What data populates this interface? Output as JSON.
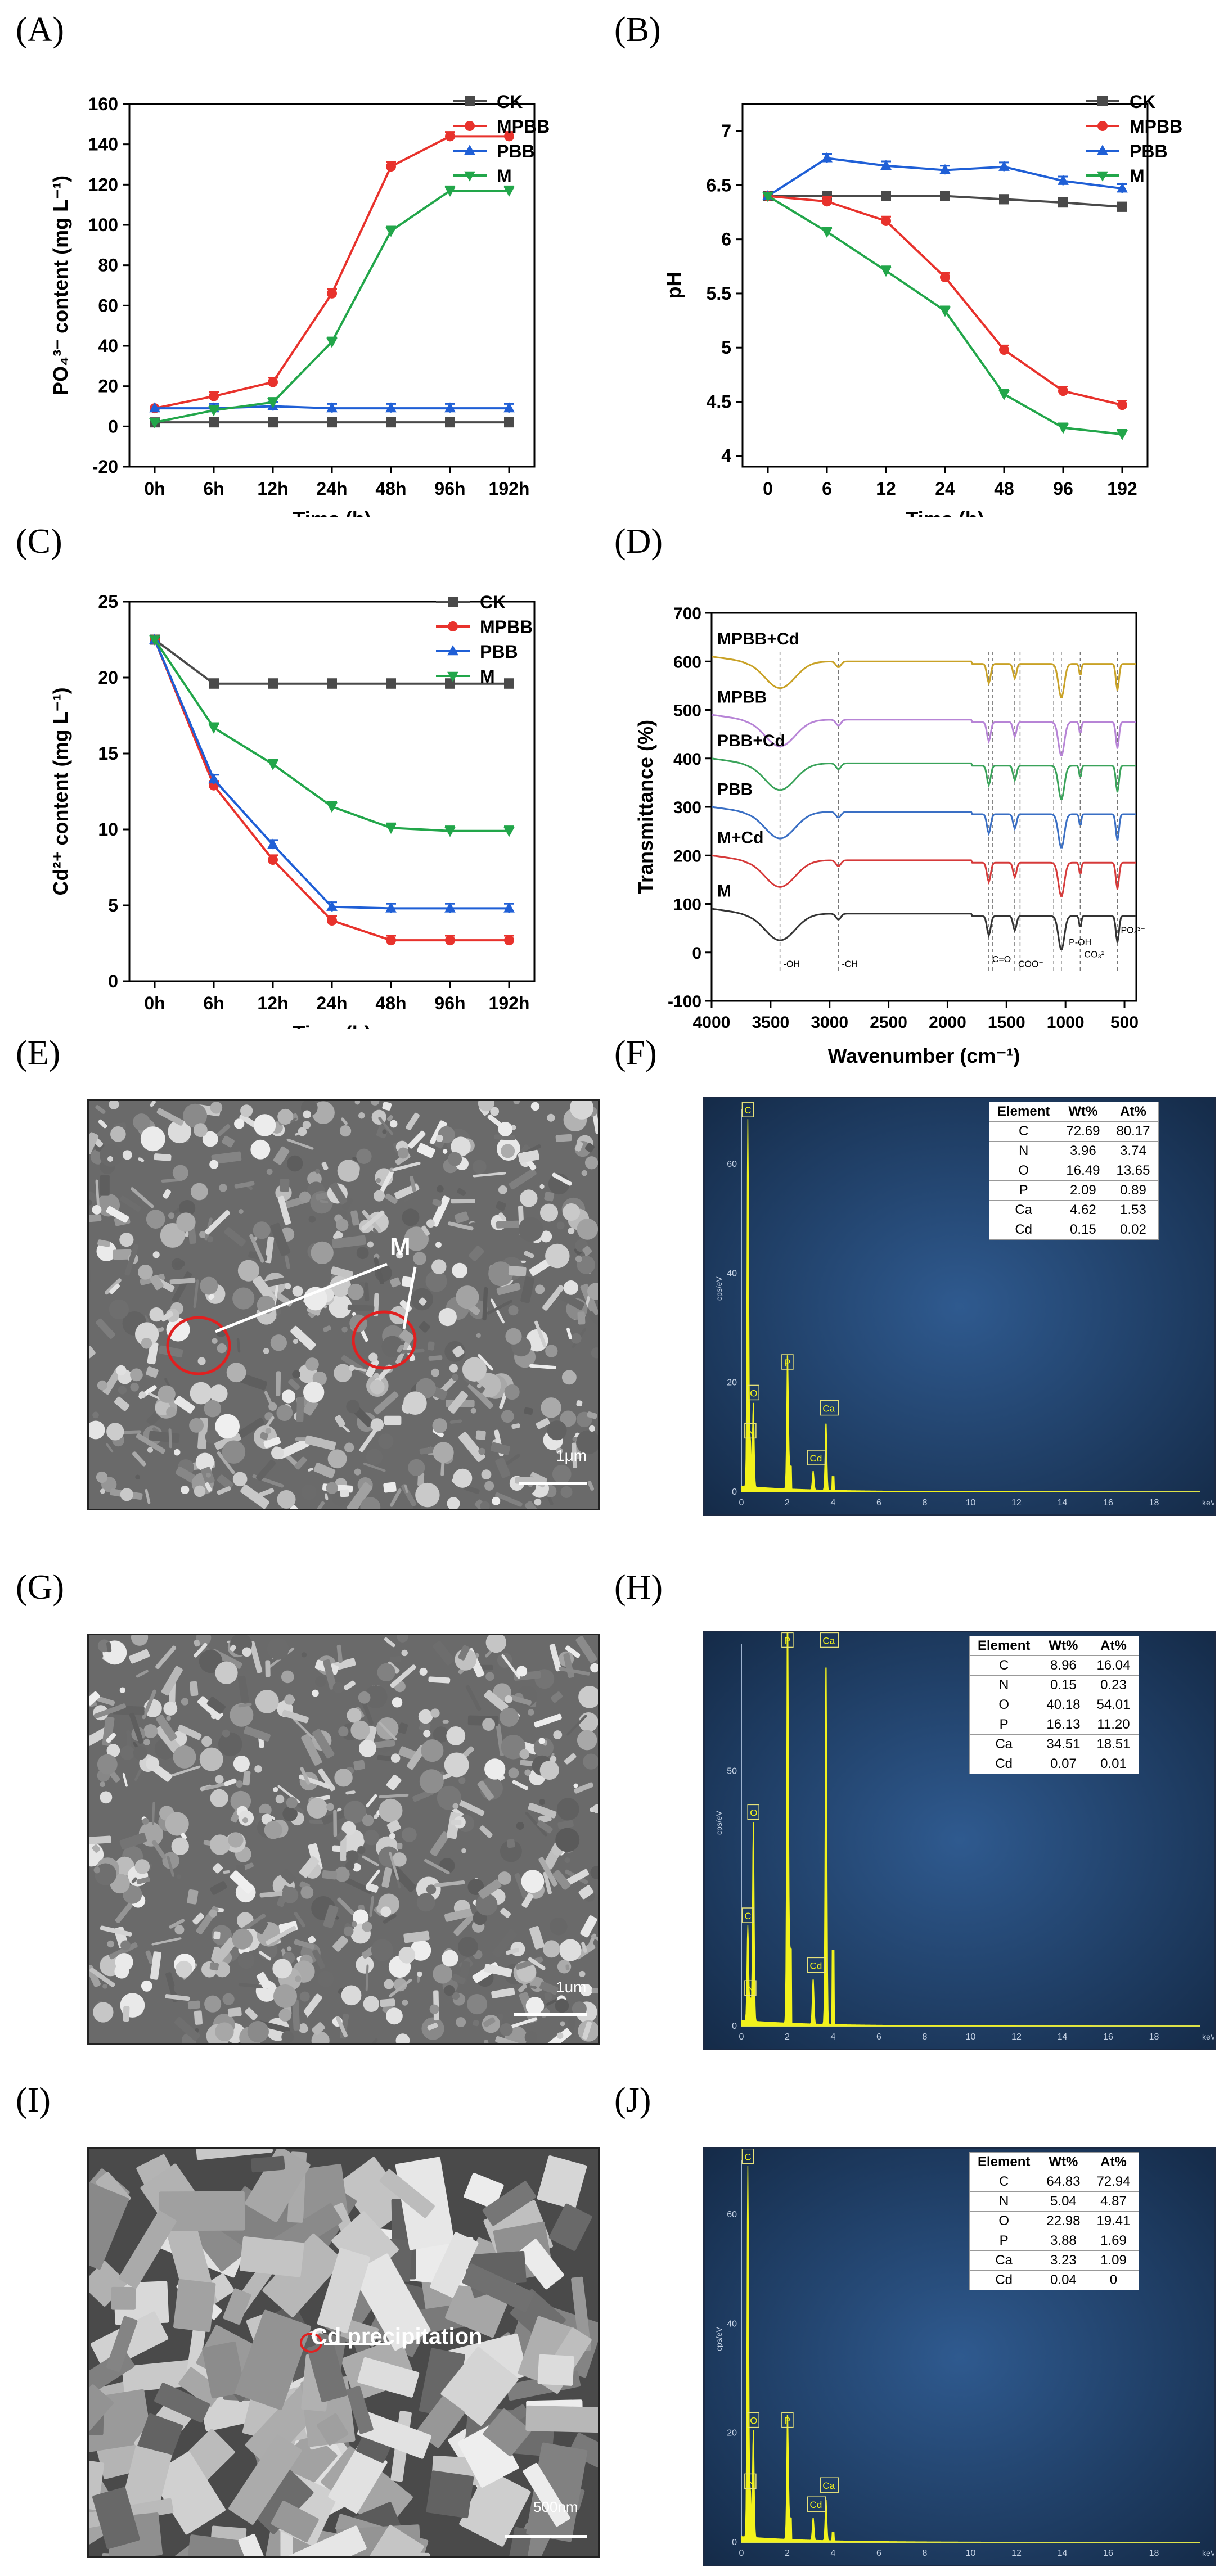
{
  "labels": {
    "A": "(A)",
    "B": "(B)",
    "C": "(C)",
    "D": "(D)",
    "E": "(E)",
    "F": "(F)",
    "G": "(G)",
    "H": "(H)",
    "I": "(I)",
    "J": "(J)"
  },
  "colors": {
    "CK": "#4a4a4a",
    "MPBB": "#e8322c",
    "PBB": "#1f5fd6",
    "M": "#22a64a"
  },
  "chart_data": [
    {
      "id": "A",
      "type": "line",
      "categories": [
        "0h",
        "6h",
        "12h",
        "24h",
        "48h",
        "96h",
        "192h"
      ],
      "ylabel": "PO₄³⁻ content (mg L⁻¹)",
      "xlabel": "Time (h)",
      "ylim": [
        -20,
        160
      ],
      "yticks": [
        -20,
        0,
        20,
        40,
        60,
        80,
        100,
        120,
        140,
        160
      ],
      "legend": "top-right",
      "series": [
        {
          "name": "CK",
          "marker": "square",
          "values": [
            2,
            2,
            2,
            2,
            2,
            2,
            2
          ]
        },
        {
          "name": "MPBB",
          "marker": "circle",
          "values": [
            9,
            15,
            22,
            66,
            129,
            144,
            144
          ]
        },
        {
          "name": "PBB",
          "marker": "triangle-up",
          "values": [
            9,
            9,
            10,
            9,
            9,
            9,
            9
          ]
        },
        {
          "name": "M",
          "marker": "triangle-down",
          "values": [
            2,
            8,
            12,
            42,
            97,
            117,
            117
          ]
        }
      ]
    },
    {
      "id": "B",
      "type": "line",
      "categories": [
        "0",
        "6",
        "12",
        "24",
        "48",
        "96",
        "192"
      ],
      "ylabel": "pH",
      "xlabel": "Time (h)",
      "ylim": [
        3.9,
        7.25
      ],
      "yticks": [
        4.0,
        4.5,
        5.0,
        5.5,
        6.0,
        6.5,
        7.0
      ],
      "legend": "top-right",
      "series": [
        {
          "name": "CK",
          "marker": "square",
          "values": [
            6.4,
            6.4,
            6.4,
            6.4,
            6.37,
            6.34,
            6.3
          ]
        },
        {
          "name": "MPBB",
          "marker": "circle",
          "values": [
            6.4,
            6.35,
            6.17,
            5.65,
            4.98,
            4.6,
            4.47
          ]
        },
        {
          "name": "PBB",
          "marker": "triangle-up",
          "values": [
            6.4,
            6.75,
            6.68,
            6.64,
            6.67,
            6.54,
            6.47
          ]
        },
        {
          "name": "M",
          "marker": "triangle-down",
          "values": [
            6.4,
            6.07,
            5.71,
            5.34,
            4.57,
            4.26,
            4.2
          ]
        }
      ]
    },
    {
      "id": "C",
      "type": "line",
      "categories": [
        "0h",
        "6h",
        "12h",
        "24h",
        "48h",
        "96h",
        "192h"
      ],
      "ylabel": "Cd²⁺ content (mg L⁻¹)",
      "xlabel": "Time (h)",
      "ylim": [
        0,
        25
      ],
      "yticks": [
        0,
        5,
        10,
        15,
        20,
        25
      ],
      "legend": "top-right",
      "series": [
        {
          "name": "CK",
          "marker": "square",
          "values": [
            22.5,
            19.6,
            19.6,
            19.6,
            19.6,
            19.6,
            19.6
          ]
        },
        {
          "name": "MPBB",
          "marker": "circle",
          "values": [
            22.5,
            12.9,
            8.0,
            4.0,
            2.7,
            2.7,
            2.7
          ]
        },
        {
          "name": "PBB",
          "marker": "triangle-up",
          "values": [
            22.5,
            13.3,
            9.0,
            4.9,
            4.8,
            4.8,
            4.8
          ]
        },
        {
          "name": "M",
          "marker": "triangle-down",
          "values": [
            22.5,
            16.7,
            14.3,
            11.5,
            10.1,
            9.9,
            9.9
          ]
        }
      ]
    },
    {
      "id": "D",
      "type": "line",
      "ylabel": "Transmittance (%)",
      "xlabel": "Wavenumber (cm⁻¹)",
      "xlim": [
        4000,
        400
      ],
      "xticks": [
        4000,
        3500,
        3000,
        2500,
        2000,
        1500,
        1000,
        500
      ],
      "ylim": [
        -100,
        700
      ],
      "yticks": [
        -100,
        0,
        100,
        200,
        300,
        400,
        500,
        600,
        700
      ],
      "series": [
        {
          "name": "MPBB+Cd",
          "color": "#c9a227",
          "offset": 600
        },
        {
          "name": "MPBB",
          "color": "#b784d6",
          "offset": 480
        },
        {
          "name": "PBB+Cd",
          "color": "#3aa35a",
          "offset": 390
        },
        {
          "name": "PBB",
          "color": "#3a6fc4",
          "offset": 290
        },
        {
          "name": "M+Cd",
          "color": "#d63a3a",
          "offset": 190
        },
        {
          "name": "M",
          "color": "#333333",
          "offset": 80
        }
      ],
      "annotations": [
        "-OH",
        "-CH",
        "C=O",
        "COO⁻",
        "CO₃²⁻",
        "PO₄³⁻",
        "P-OH"
      ],
      "markers_at": [
        3420,
        2925,
        1650,
        1620,
        1430,
        1385,
        1100,
        1035,
        875,
        560
      ]
    }
  ],
  "sem": {
    "E": {
      "annotation": "M",
      "scale": "1μm"
    },
    "G": {
      "scale": "1um"
    },
    "I": {
      "annotation": "Cd precipitation",
      "scale": "500nm"
    }
  },
  "eds": {
    "headers": [
      "Element",
      "Wt%",
      "At%"
    ],
    "F": {
      "rows": [
        [
          "C",
          "72.69",
          "80.17"
        ],
        [
          "N",
          "3.96",
          "3.74"
        ],
        [
          "O",
          "16.49",
          "13.65"
        ],
        [
          "P",
          "2.09",
          "0.89"
        ],
        [
          "Ca",
          "4.62",
          "1.53"
        ],
        [
          "Cd",
          "0.15",
          "0.02"
        ]
      ],
      "peaks": [
        {
          "el": "C",
          "kev": 0.28,
          "h": 0.96
        },
        {
          "el": "N",
          "kev": 0.39,
          "h": 0.12
        },
        {
          "el": "O",
          "kev": 0.52,
          "h": 0.22
        },
        {
          "el": "P",
          "kev": 2.01,
          "h": 0.3
        },
        {
          "el": "Cd",
          "kev": 3.13,
          "h": 0.05
        },
        {
          "el": "Ca",
          "kev": 3.69,
          "h": 0.18
        }
      ],
      "yticks": [
        "0",
        "20",
        "40",
        "60"
      ]
    },
    "H": {
      "rows": [
        [
          "C",
          "8.96",
          "16.04"
        ],
        [
          "N",
          "0.15",
          "0.23"
        ],
        [
          "O",
          "40.18",
          "54.01"
        ],
        [
          "P",
          "16.13",
          "11.20"
        ],
        [
          "Ca",
          "34.51",
          "18.51"
        ],
        [
          "Cd",
          "0.07",
          "0.01"
        ]
      ],
      "peaks": [
        {
          "el": "C",
          "kev": 0.28,
          "h": 0.25
        },
        {
          "el": "N",
          "kev": 0.39,
          "h": 0.06
        },
        {
          "el": "O",
          "kev": 0.52,
          "h": 0.52
        },
        {
          "el": "P",
          "kev": 2.01,
          "h": 0.97
        },
        {
          "el": "Cd",
          "kev": 3.13,
          "h": 0.12
        },
        {
          "el": "Ca",
          "kev": 3.69,
          "h": 0.97
        }
      ],
      "yticks": [
        "0",
        "50"
      ]
    },
    "J": {
      "rows": [
        [
          "C",
          "64.83",
          "72.94"
        ],
        [
          "N",
          "5.04",
          "4.87"
        ],
        [
          "O",
          "22.98",
          "19.41"
        ],
        [
          "P",
          "3.88",
          "1.69"
        ],
        [
          "Ca",
          "3.23",
          "1.09"
        ],
        [
          "Cd",
          "0.04",
          "0"
        ]
      ],
      "peaks": [
        {
          "el": "C",
          "kev": 0.28,
          "h": 0.97
        },
        {
          "el": "N",
          "kev": 0.39,
          "h": 0.12
        },
        {
          "el": "O",
          "kev": 0.52,
          "h": 0.28
        },
        {
          "el": "P",
          "kev": 2.01,
          "h": 0.28
        },
        {
          "el": "Cd",
          "kev": 3.13,
          "h": 0.06
        },
        {
          "el": "Ca",
          "kev": 3.69,
          "h": 0.11
        }
      ],
      "yticks": [
        "0",
        "20",
        "40",
        "60"
      ]
    },
    "xticks": [
      "0",
      "2",
      "4",
      "6",
      "8",
      "10",
      "12",
      "14",
      "16",
      "18"
    ],
    "xunit": "keV",
    "yunit": "cps/eV"
  }
}
